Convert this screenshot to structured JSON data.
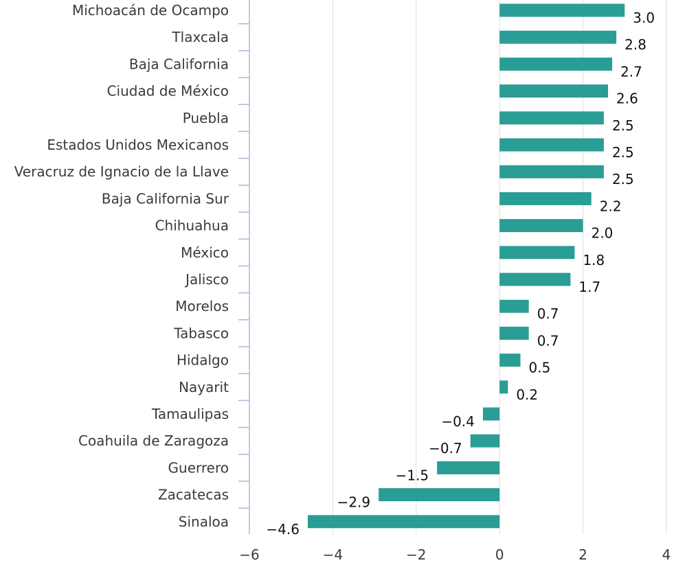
{
  "chart_data": {
    "type": "bar",
    "orientation": "horizontal",
    "categories": [
      "Michoacán de Ocampo",
      "Tlaxcala",
      "Baja California",
      "Ciudad de México",
      "Puebla",
      "Estados Unidos Mexicanos",
      "Veracruz de Ignacio de la Llave",
      "Baja California Sur",
      "Chihuahua",
      "México",
      "Jalisco",
      "Morelos",
      "Tabasco",
      "Hidalgo",
      "Nayarit",
      "Tamaulipas",
      "Coahuila de Zaragoza",
      "Guerrero",
      "Zacatecas",
      "Sinaloa"
    ],
    "values": [
      3.0,
      2.8,
      2.7,
      2.6,
      2.5,
      2.5,
      2.5,
      2.2,
      2.0,
      1.8,
      1.7,
      0.7,
      0.7,
      0.5,
      0.2,
      -0.4,
      -0.7,
      -1.5,
      -2.9,
      -4.6
    ],
    "value_labels": [
      "3.0",
      "2.8",
      "2.7",
      "2.6",
      "2.5",
      "2.5",
      "2.5",
      "2.2",
      "2.0",
      "1.8",
      "1.7",
      "0.7",
      "0.7",
      "0.5",
      "0.2",
      "−0.4",
      "−0.7",
      "−1.5",
      "−2.9",
      "−4.6"
    ],
    "xlim": [
      -6,
      4
    ],
    "xticks": [
      -6,
      -4,
      -2,
      0,
      2,
      4
    ],
    "xtick_labels": [
      "−6",
      "−4",
      "−2",
      "0",
      "2",
      "4"
    ],
    "title": "",
    "xlabel": "",
    "ylabel": "",
    "grid": "vertical",
    "bar_color": "#2a9d94",
    "grid_color": "#d9dde6",
    "axis_color": "#a9b8d8"
  }
}
